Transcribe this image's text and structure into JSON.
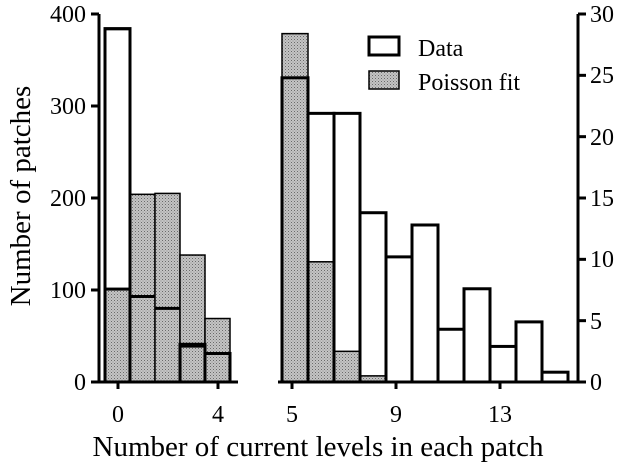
{
  "chart_data": {
    "type": "bar",
    "xlabel": "Number of current levels in each patch",
    "ylabel_left": "Number of patches",
    "ylim_left": [
      0,
      400
    ],
    "yticks_left": [
      "0",
      "100",
      "200",
      "300",
      "400"
    ],
    "ylim_right": [
      0,
      30
    ],
    "yticks_right": [
      "0",
      "5",
      "10",
      "15",
      "20",
      "25",
      "30"
    ],
    "xticks_left": [
      "0",
      "4"
    ],
    "xticks_right": [
      "5",
      "9",
      "13"
    ],
    "legend_position": "top-right",
    "series": [
      {
        "name": "Data",
        "color": "#ffffff"
      },
      {
        "name": "Poisson fit",
        "color": "#b8b8b8"
      }
    ],
    "panels": [
      {
        "axis": "left",
        "x": [
          0,
          1,
          2,
          3,
          4
        ],
        "data": [
          384,
          0,
          0,
          41,
          31
        ],
        "poisson_fit": [
          101,
          93,
          80,
          39,
          31
        ],
        "fit_tops": [
          101,
          204,
          205,
          138,
          69
        ]
      },
      {
        "axis": "right",
        "x": [
          5,
          6,
          7,
          8,
          9,
          10,
          11,
          12,
          13,
          14,
          15
        ],
        "data": [
          24.8,
          21.9,
          21.9,
          13.8,
          10.2,
          12.8,
          4.3,
          7.6,
          2.9,
          4.9,
          0.8
        ],
        "poisson_fit": [
          28.4,
          9.8,
          2.5,
          0.5,
          0,
          0,
          0,
          0,
          0,
          0,
          0
        ]
      }
    ]
  }
}
